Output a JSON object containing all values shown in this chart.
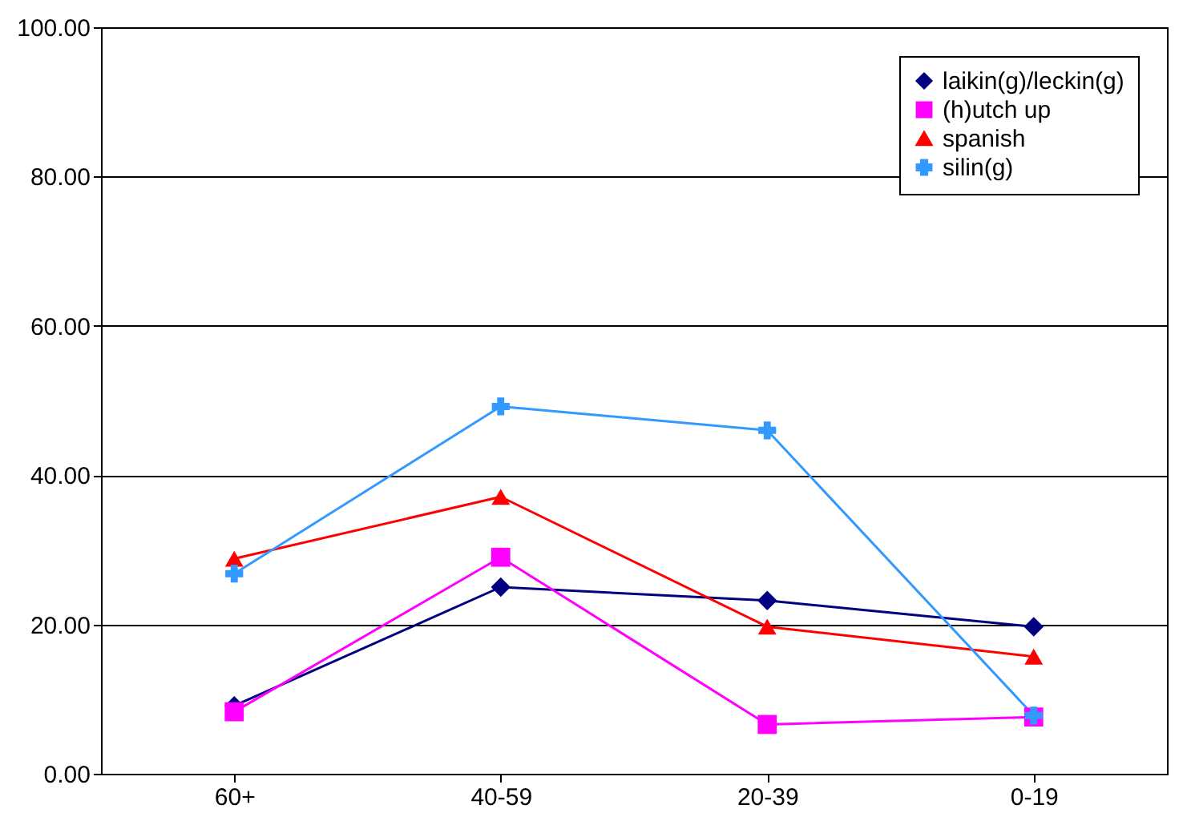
{
  "chart_data": {
    "type": "line",
    "categories": [
      "60+",
      "40-59",
      "20-39",
      "0-19"
    ],
    "series": [
      {
        "name": "laikin(g)/leckin(g)",
        "color": "#000080",
        "marker": "diamond",
        "values": [
          9.1,
          25.0,
          23.2,
          19.7
        ]
      },
      {
        "name": "(h)utch up",
        "color": "#ff00ff",
        "marker": "square",
        "values": [
          8.3,
          29.0,
          6.6,
          7.6
        ]
      },
      {
        "name": "spanish",
        "color": "#ff0000",
        "marker": "triangle",
        "values": [
          28.8,
          37.1,
          19.7,
          15.7
        ]
      },
      {
        "name": "silin(g)",
        "color": "#3399ff",
        "marker": "cross",
        "values": [
          26.8,
          49.2,
          46.0,
          7.8
        ]
      }
    ],
    "ylim": [
      0,
      100
    ],
    "yticks": [
      {
        "value": 0,
        "label": "0.00"
      },
      {
        "value": 20,
        "label": "20.00"
      },
      {
        "value": 40,
        "label": "40.00"
      },
      {
        "value": 60,
        "label": "60.00"
      },
      {
        "value": 80,
        "label": "80.00"
      },
      {
        "value": 100,
        "label": "100.00"
      }
    ],
    "grid": "y",
    "legend": "top right",
    "line_style": "solid"
  }
}
